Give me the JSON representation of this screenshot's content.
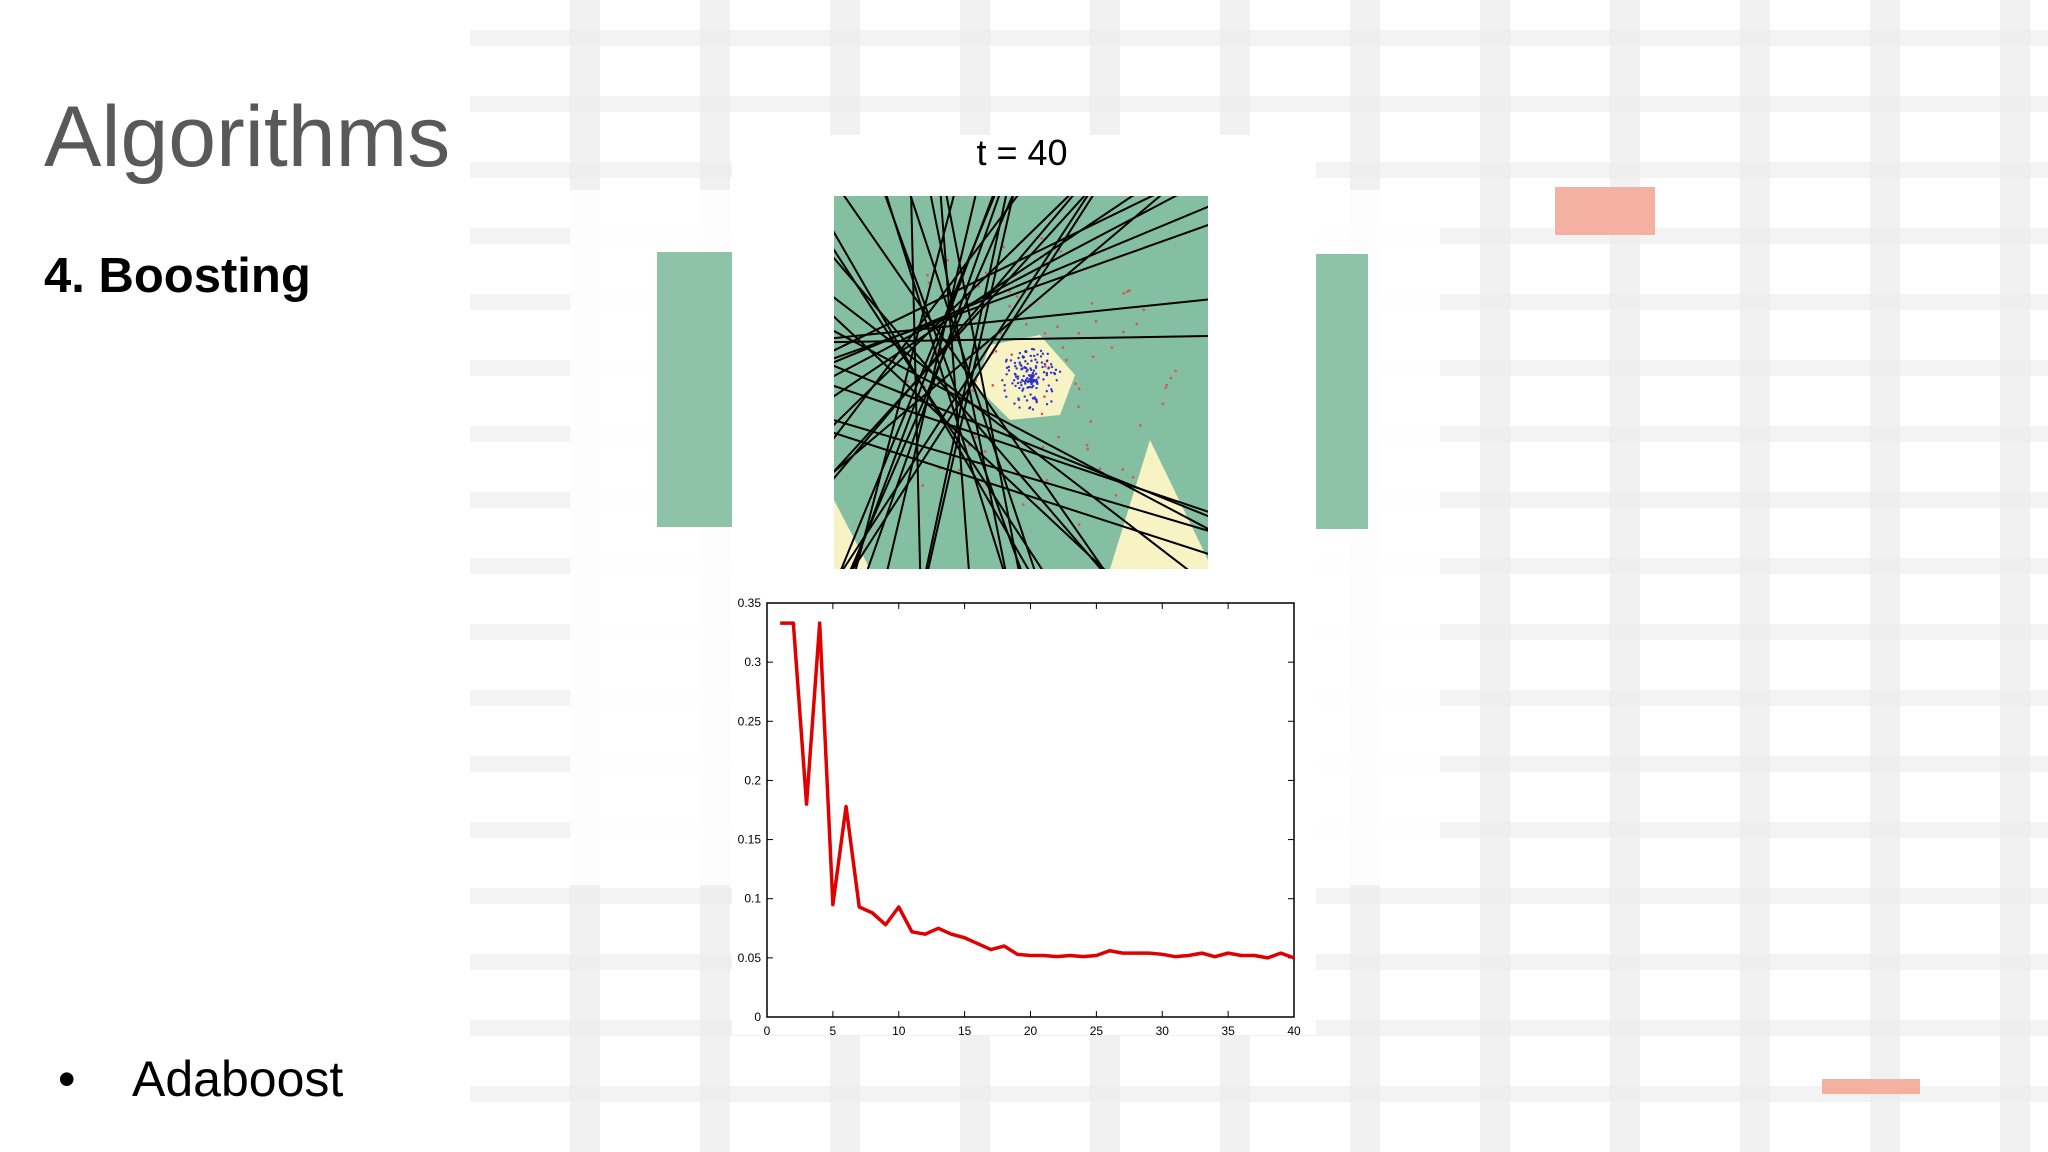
{
  "title": "Algorithms",
  "subtitle": "4. Boosting",
  "bullets": [
    "Adaboost"
  ],
  "plot_title": "t = 40",
  "chart_data": {
    "type": "line",
    "x": [
      1,
      2,
      3,
      4,
      5,
      6,
      7,
      8,
      9,
      10,
      11,
      12,
      13,
      14,
      15,
      16,
      17,
      18,
      19,
      20,
      21,
      22,
      23,
      24,
      25,
      26,
      27,
      28,
      29,
      30,
      31,
      32,
      33,
      34,
      35,
      36,
      37,
      38,
      39,
      40
    ],
    "series": [
      {
        "color": "#e00000",
        "values": [
          0.333,
          0.333,
          0.18,
          0.333,
          0.095,
          0.178,
          0.093,
          0.088,
          0.078,
          0.093,
          0.072,
          0.07,
          0.075,
          0.07,
          0.067,
          0.062,
          0.057,
          0.06,
          0.053,
          0.052,
          0.052,
          0.051,
          0.052,
          0.051,
          0.052,
          0.056,
          0.054,
          0.054,
          0.054,
          0.053,
          0.051,
          0.052,
          0.054,
          0.051,
          0.054,
          0.052,
          0.052,
          0.05,
          0.054,
          0.05
        ]
      }
    ],
    "xlim": [
      0,
      40
    ],
    "xticks": [
      0,
      5,
      10,
      15,
      20,
      25,
      30,
      35,
      40
    ],
    "ylim": [
      0,
      0.35
    ],
    "yticks": [
      0,
      0.05,
      0.1,
      0.15,
      0.2,
      0.25,
      0.3,
      0.35
    ]
  }
}
